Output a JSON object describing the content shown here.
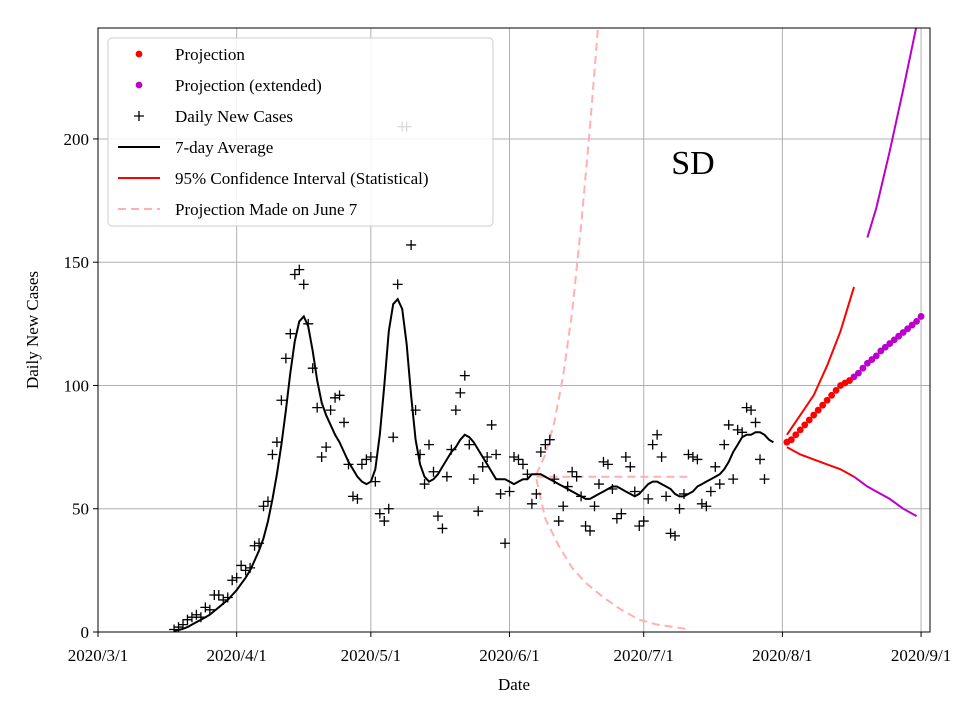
{
  "chart_data": {
    "type": "line",
    "annotation": "SD",
    "xlabel": "Date",
    "ylabel": "Daily New Cases",
    "xlim": [
      "2020-03-01",
      "2020-09-03"
    ],
    "ylim": [
      0,
      245
    ],
    "xticks": [
      {
        "date": "2020-03-01",
        "label": "2020/3/1"
      },
      {
        "date": "2020-04-01",
        "label": "2020/4/1"
      },
      {
        "date": "2020-05-01",
        "label": "2020/5/1"
      },
      {
        "date": "2020-06-01",
        "label": "2020/6/1"
      },
      {
        "date": "2020-07-01",
        "label": "2020/7/1"
      },
      {
        "date": "2020-08-01",
        "label": "2020/8/1"
      },
      {
        "date": "2020-09-01",
        "label": "2020/9/1"
      }
    ],
    "yticks": [
      0,
      50,
      100,
      150,
      200
    ],
    "grid": true,
    "legend_position": "top-left",
    "colors": {
      "projection": "#ff0000",
      "projection_extended": "#bb00cc",
      "daily": "#000000",
      "average": "#000000",
      "ci": "#ff0000",
      "june7": "#ffb0b0"
    },
    "legend": [
      {
        "key": "projection",
        "label": "Projection"
      },
      {
        "key": "projection_extended",
        "label": "Projection (extended)"
      },
      {
        "key": "daily",
        "label": "Daily New Cases"
      },
      {
        "key": "average",
        "label": "7-day Average"
      },
      {
        "key": "ci",
        "label": "95% Confidence Interval (Statistical)"
      },
      {
        "key": "june7",
        "label": "Projection Made on June 7"
      }
    ],
    "series": {
      "daily_new_cases": {
        "start_date": "2020-03-18",
        "values": [
          1,
          2,
          3,
          5,
          6,
          7,
          6,
          10,
          9,
          15,
          15,
          13,
          14,
          21,
          22,
          27,
          25,
          26,
          35,
          36,
          51,
          53,
          72,
          77,
          94,
          111,
          121,
          145,
          147,
          141,
          125,
          107,
          91,
          71,
          75,
          90,
          95,
          96,
          85,
          68,
          55,
          54,
          68,
          70,
          71,
          61,
          48,
          45,
          50,
          79,
          141,
          205,
          205,
          157,
          90,
          72,
          60,
          76,
          65,
          47,
          42,
          63,
          74,
          90,
          97,
          104,
          76,
          62,
          49,
          67,
          71,
          84,
          72,
          56,
          36,
          57,
          71,
          70,
          68,
          64,
          52,
          56,
          73,
          76,
          78,
          62,
          45,
          51,
          59,
          65,
          63,
          55,
          43,
          41,
          51,
          60,
          69,
          68,
          58,
          46,
          48,
          71,
          67,
          57,
          43,
          45,
          54,
          76,
          80,
          71,
          55,
          40,
          39,
          50,
          56,
          72,
          71,
          70,
          52,
          51,
          57,
          67,
          60,
          76,
          84,
          62,
          82,
          81,
          91,
          90,
          85,
          70,
          62
        ]
      },
      "seven_day_average": {
        "start_date": "2020-03-18",
        "values": [
          0.5,
          0.8,
          1.3,
          2,
          3,
          4,
          5,
          6,
          7,
          8.5,
          10,
          11.5,
          13,
          15,
          17,
          19.5,
          22,
          25,
          29,
          33,
          38,
          45,
          54,
          64,
          76,
          90,
          105,
          118,
          126,
          128,
          124,
          114,
          102,
          93,
          88,
          84,
          80,
          77,
          73,
          69,
          66,
          63,
          61,
          60,
          61,
          66,
          80,
          100,
          122,
          133,
          135,
          131,
          117,
          96,
          78,
          68,
          63,
          61,
          62,
          64,
          67,
          70,
          73,
          75,
          78,
          80,
          79,
          77,
          74,
          71,
          68,
          65,
          62,
          62,
          62,
          61,
          60,
          61,
          62,
          62,
          64,
          64,
          64,
          63,
          62,
          61,
          60,
          59,
          58,
          57,
          56,
          55,
          54,
          54,
          55,
          56,
          57,
          58,
          59,
          59,
          58,
          57,
          56,
          55,
          56,
          58,
          60,
          61,
          61,
          60,
          59,
          58,
          56,
          55,
          55,
          56,
          57,
          59,
          60,
          61,
          62,
          63,
          64,
          66,
          69,
          73,
          76,
          79,
          80,
          80,
          81,
          81,
          80,
          78,
          77
        ]
      },
      "projection": {
        "start_date": "2020-08-02",
        "values": [
          77,
          78,
          80,
          82,
          84,
          86,
          88,
          90,
          92,
          94,
          96,
          98,
          100,
          101,
          102
        ]
      },
      "projection_extended": {
        "start_date": "2020-08-17",
        "values": [
          103.5,
          105,
          107,
          109,
          110.5,
          112,
          114,
          115.5,
          117,
          118.5,
          120,
          121.5,
          123,
          124.5,
          126,
          128
        ]
      },
      "ci_upper": {
        "points": [
          [
            "2020-08-02",
            80
          ],
          [
            "2020-08-05",
            88
          ],
          [
            "2020-08-08",
            96
          ],
          [
            "2020-08-11",
            108
          ],
          [
            "2020-08-14",
            122
          ],
          [
            "2020-08-17",
            140
          ],
          [
            "2020-08-20",
            160
          ],
          [
            "2020-08-22",
            172
          ],
          [
            "2020-08-25",
            195
          ],
          [
            "2020-08-28",
            220
          ],
          [
            "2020-08-31",
            246
          ]
        ]
      },
      "ci_lower": {
        "points": [
          [
            "2020-08-02",
            75
          ],
          [
            "2020-08-05",
            72
          ],
          [
            "2020-08-08",
            70
          ],
          [
            "2020-08-11",
            68
          ],
          [
            "2020-08-14",
            66
          ],
          [
            "2020-08-17",
            63
          ],
          [
            "2020-08-20",
            59
          ],
          [
            "2020-08-22",
            57
          ],
          [
            "2020-08-25",
            54
          ],
          [
            "2020-08-28",
            50
          ],
          [
            "2020-08-31",
            47
          ]
        ]
      },
      "june7_projection": {
        "points": [
          [
            "2020-06-07",
            62
          ],
          [
            "2020-06-09",
            46
          ],
          [
            "2020-06-12",
            35
          ],
          [
            "2020-06-15",
            26
          ],
          [
            "2020-06-18",
            20
          ],
          [
            "2020-06-22",
            14
          ],
          [
            "2020-06-26",
            9
          ],
          [
            "2020-06-30",
            5
          ],
          [
            "2020-07-04",
            3
          ],
          [
            "2020-07-08",
            2
          ],
          [
            "2020-07-11",
            1
          ],
          [
            "2020-07-07",
            63
          ],
          [
            "2020-07-11",
            64
          ]
        ]
      },
      "june7_projection_upper": {
        "points": [
          [
            "2020-06-07",
            64
          ],
          [
            "2020-06-09",
            72
          ],
          [
            "2020-06-11",
            85
          ],
          [
            "2020-06-13",
            104
          ],
          [
            "2020-06-15",
            130
          ],
          [
            "2020-06-17",
            165
          ],
          [
            "2020-06-19",
            205
          ],
          [
            "2020-06-21",
            250
          ]
        ]
      },
      "june7_projection_flat": {
        "points": [
          [
            "2020-06-07",
            63
          ],
          [
            "2020-06-16",
            63
          ],
          [
            "2020-06-25",
            63
          ],
          [
            "2020-07-04",
            63
          ],
          [
            "2020-07-11",
            63
          ]
        ]
      }
    }
  }
}
